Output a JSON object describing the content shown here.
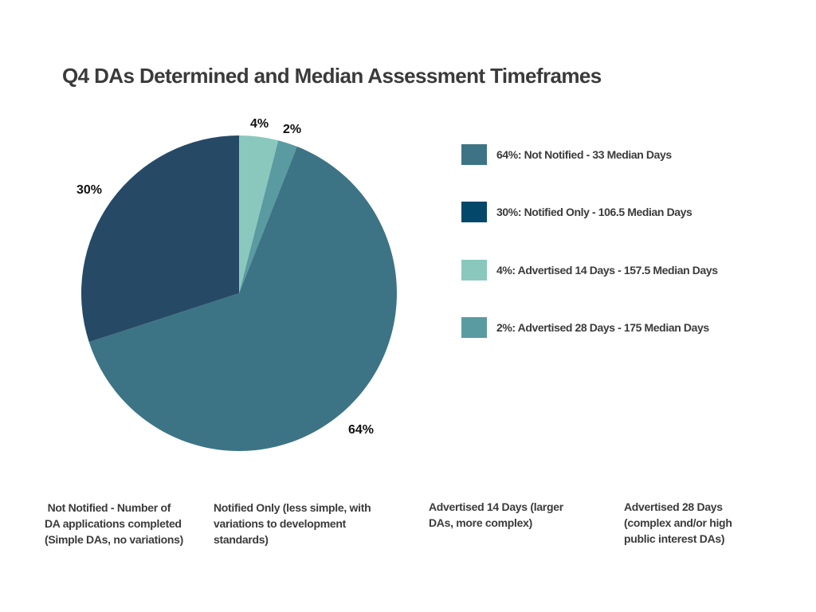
{
  "chart_data": {
    "type": "pie",
    "title": "Q4 DAs Determined and Median Assessment Timeframes",
    "slices": [
      {
        "name": "Not Notified",
        "value": 64,
        "label": "64%",
        "legend": "64%: Not Notified - 33 Median Days",
        "color": "#3c7485"
      },
      {
        "name": "Notified Only",
        "value": 30,
        "label": "30%",
        "legend": "30%: Notified Only - 106.5 Median Days",
        "color": "#264a66",
        "legend_color": "#03476a"
      },
      {
        "name": "Advertised 14 Days",
        "value": 4,
        "label": "4%",
        "legend": "4%: Advertised 14 Days - 157.5 Median Days",
        "color": "#8ac8bd"
      },
      {
        "name": "Advertised 28 Days",
        "value": 2,
        "label": "2%",
        "legend": "2%: Advertised 28 Days - 175 Median Days",
        "color": "#5a9aa1"
      }
    ],
    "legend_position": "right"
  },
  "notes": [
    {
      "lines": [
        " Not Notified - Number of",
        "DA applications completed",
        "(Simple DAs, no variations)"
      ]
    },
    {
      "lines": [
        "Notified Only (less simple, with",
        "variations to development",
        "standards)"
      ]
    },
    {
      "lines": [
        "Advertised 14 Days (larger",
        "DAs, more complex)"
      ]
    },
    {
      "lines": [
        "Advertised 28 Days",
        "(complex and/or high",
        "public interest DAs)"
      ]
    }
  ]
}
